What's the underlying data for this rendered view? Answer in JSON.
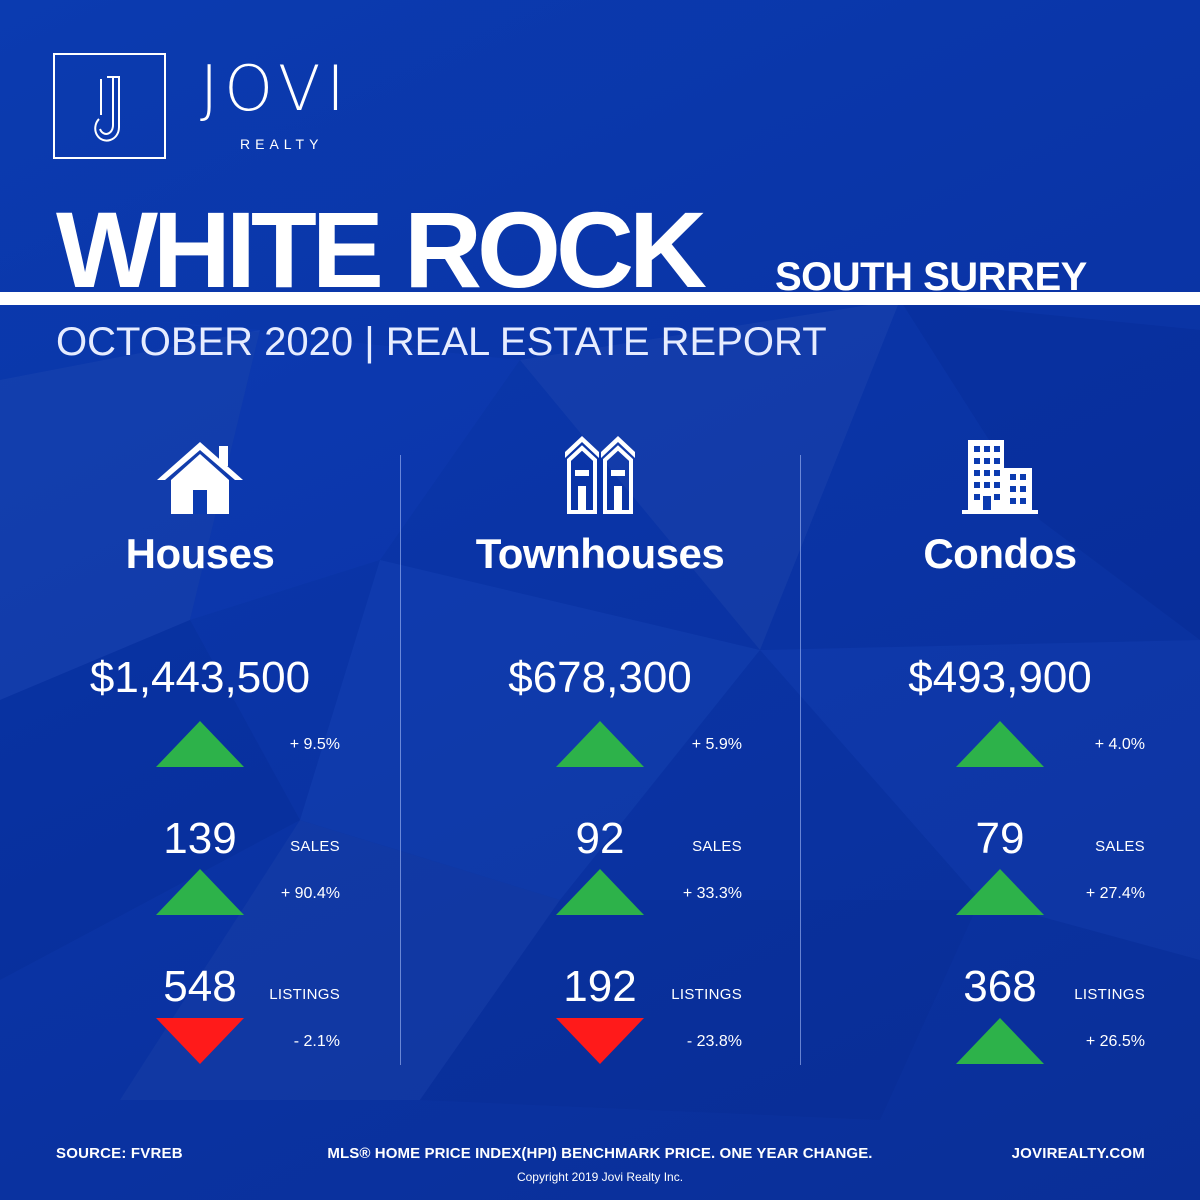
{
  "brand": {
    "logo_letter": "J",
    "name": "JOVI",
    "subtitle": "REALTY"
  },
  "headline": {
    "title": "WHITE ROCK",
    "subtitle": "SOUTH SURREY",
    "report_line": "OCTOBER 2020 | REAL ESTATE REPORT"
  },
  "colors": {
    "background": "#0b3bb0",
    "increase": "#2db24a",
    "decrease": "#ff1a1a",
    "text": "#ffffff"
  },
  "categories": [
    {
      "icon": "house-icon",
      "label": "Houses",
      "price": "$1,443,500",
      "price_change": "+ 9.5%",
      "price_trend": "up",
      "sales": "139",
      "sales_label": "SALES",
      "sales_change": "+ 90.4%",
      "sales_trend": "up",
      "listings": "548",
      "listings_label": "LISTINGS",
      "listings_change": "- 2.1%",
      "listings_trend": "down"
    },
    {
      "icon": "townhouse-icon",
      "label": "Townhouses",
      "price": "$678,300",
      "price_change": "+ 5.9%",
      "price_trend": "up",
      "sales": "92",
      "sales_label": "SALES",
      "sales_change": "+ 33.3%",
      "sales_trend": "up",
      "listings": "192",
      "listings_label": "LISTINGS",
      "listings_change": "- 23.8%",
      "listings_trend": "down"
    },
    {
      "icon": "condo-building-icon",
      "label": "Condos",
      "price": "$493,900",
      "price_change": "+ 4.0%",
      "price_trend": "up",
      "sales": "79",
      "sales_label": "SALES",
      "sales_change": "+ 27.4%",
      "sales_trend": "up",
      "listings": "368",
      "listings_label": "LISTINGS",
      "listings_change": "+ 26.5%",
      "listings_trend": "up"
    }
  ],
  "footer": {
    "source": "SOURCE:  FVREB",
    "note": "MLS® HOME PRICE INDEX(HPI) BENCHMARK PRICE. ONE YEAR CHANGE.",
    "website": "JOVIREALTY.COM",
    "copyright": "Copyright 2019 Jovi Realty Inc."
  }
}
